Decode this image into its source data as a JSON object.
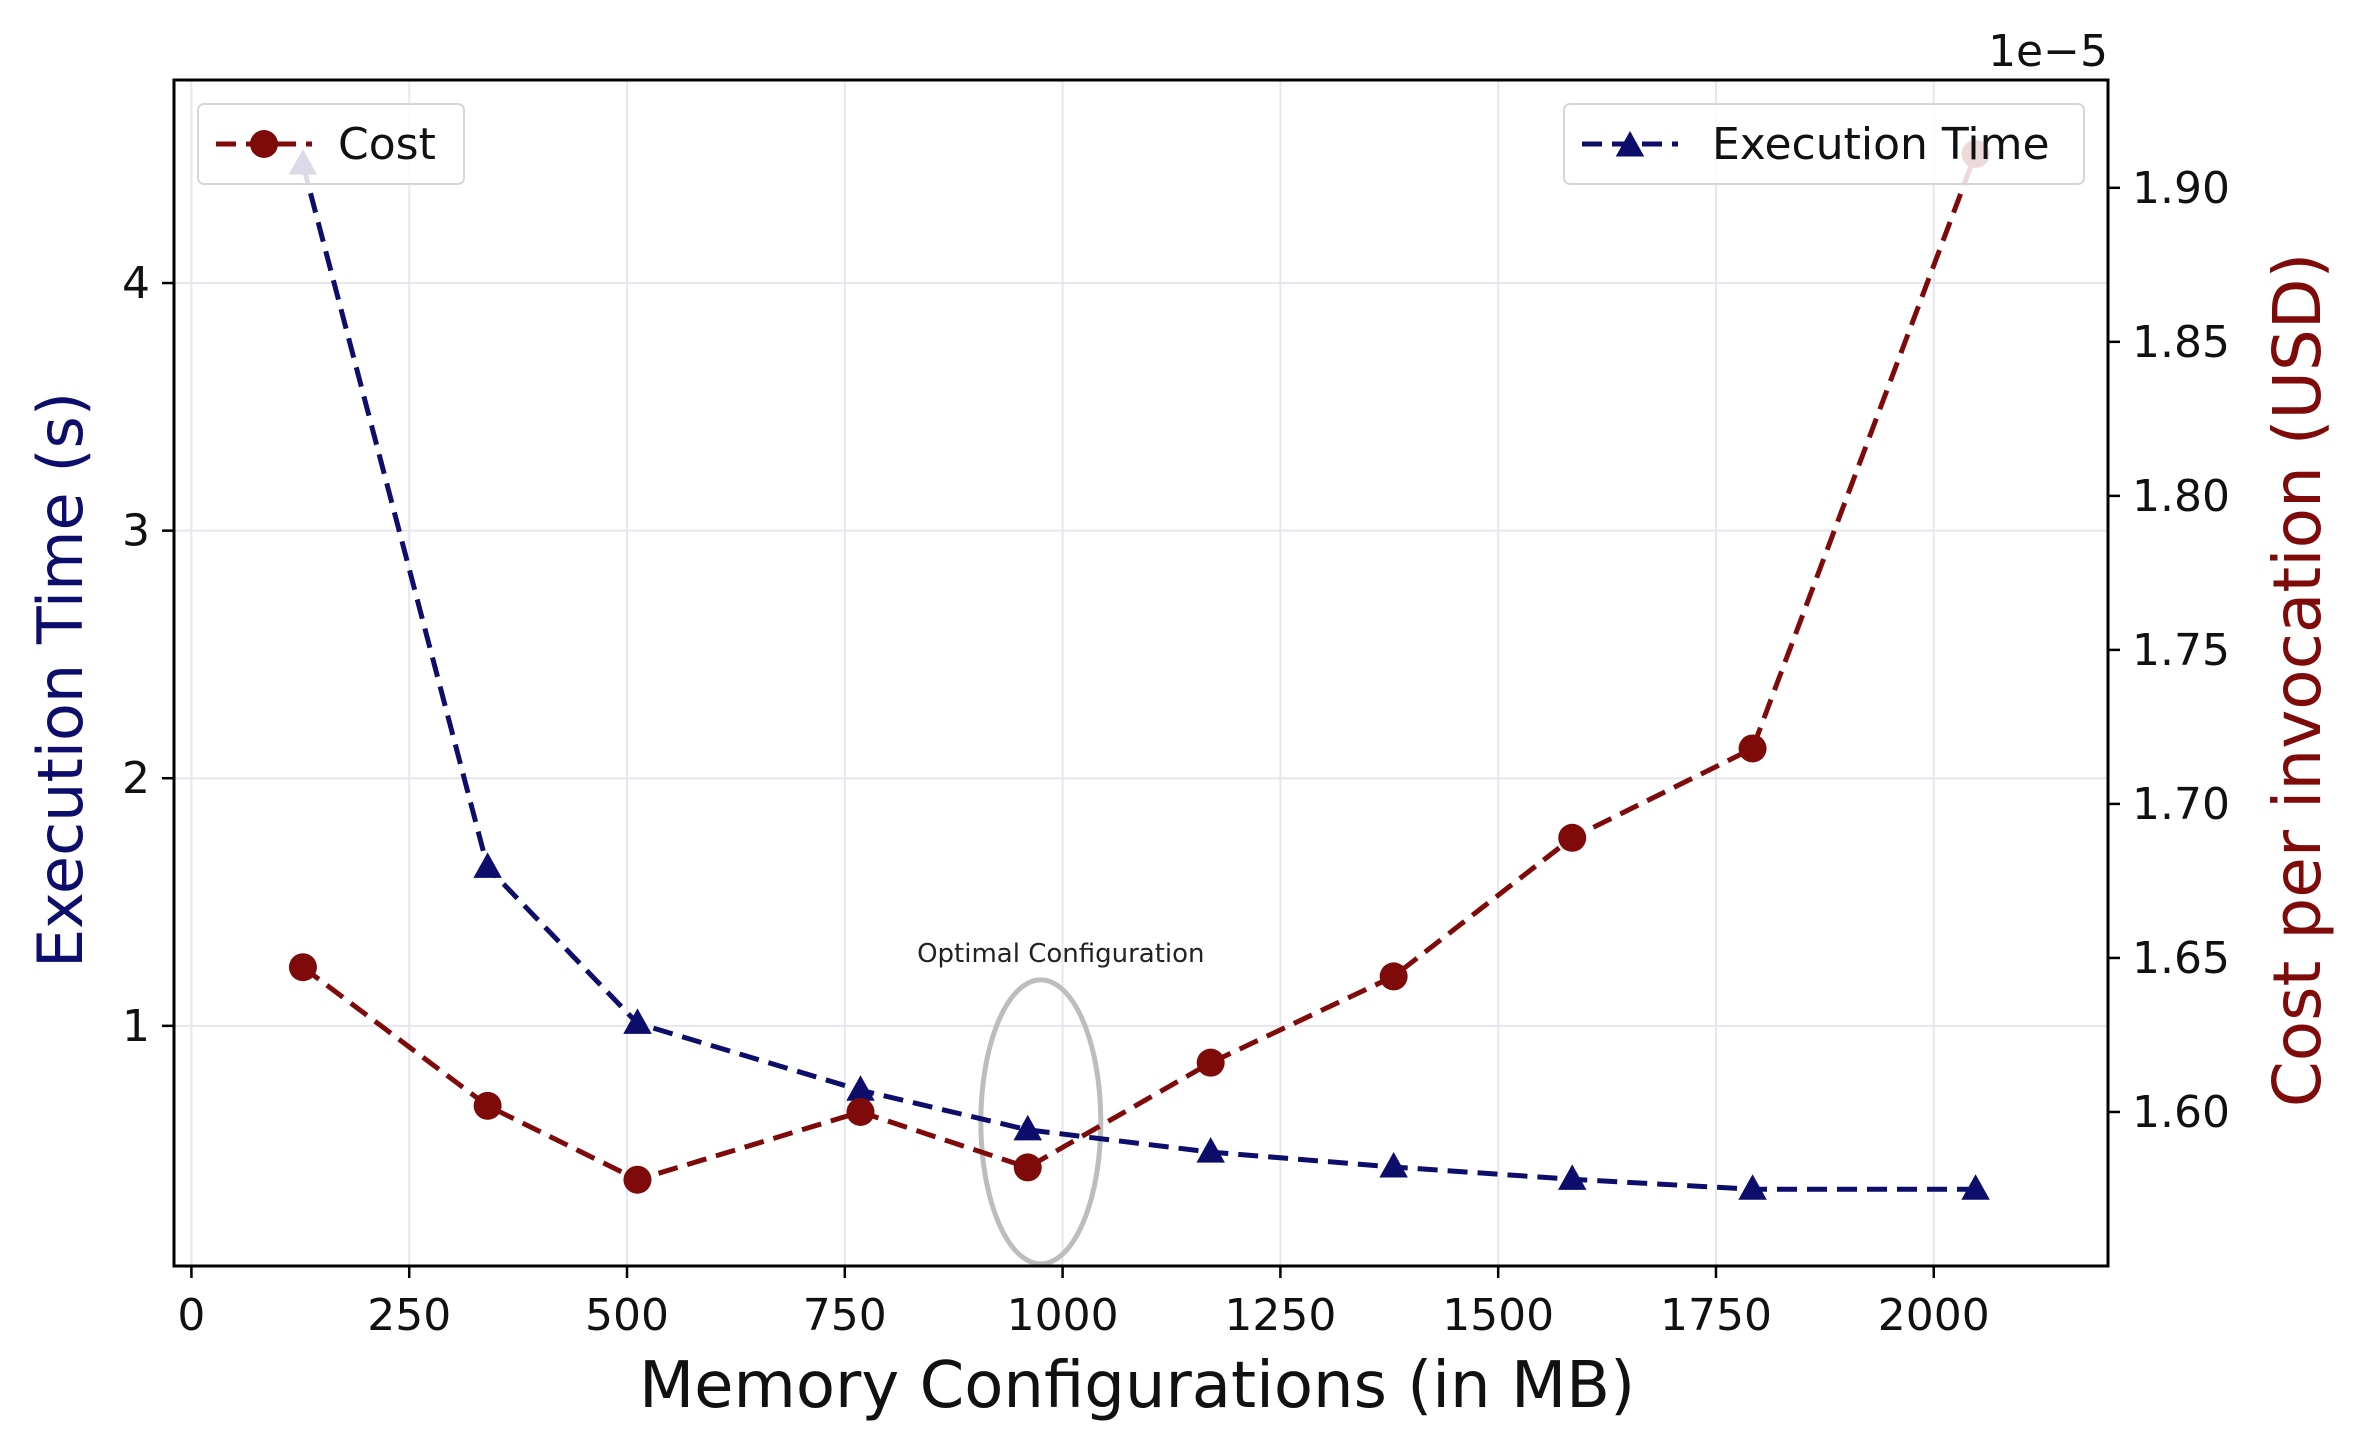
{
  "chart_data": {
    "type": "line",
    "title": "",
    "xlabel": "Memory Configurations (in MB)",
    "ylabel_left": "Execution Time (s)",
    "ylabel_right": "Cost per invocation (USD)",
    "right_axis_offset_text": "1e−5",
    "x": [
      128,
      340,
      512,
      768,
      960,
      1170,
      1380,
      1585,
      1792,
      2048
    ],
    "series": [
      {
        "name": "Execution Time",
        "axis": "left",
        "marker": "triangle",
        "line_style": "dashed",
        "color": "#0d0d6b",
        "values": [
          4.48,
          1.64,
          1.01,
          0.74,
          0.58,
          0.49,
          0.43,
          0.38,
          0.34,
          0.34
        ]
      },
      {
        "name": "Cost",
        "axis": "right",
        "marker": "circle",
        "line_style": "dashed",
        "color": "#7f0a0a",
        "values": [
          1.647,
          1.602,
          1.578,
          1.6,
          1.582,
          1.616,
          1.644,
          1.689,
          1.718,
          1.911
        ]
      }
    ],
    "x_ticks": [
      0,
      250,
      500,
      750,
      1000,
      1250,
      1500,
      1750,
      2000
    ],
    "x_tick_labels": [
      "0",
      "250",
      "500",
      "750",
      "1000",
      "1250",
      "1500",
      "1750",
      "2000"
    ],
    "xlim": [
      -20,
      2200
    ],
    "y_left_ticks": [
      1,
      2,
      3,
      4
    ],
    "y_left_tick_labels": [
      "1",
      "2",
      "3",
      "4"
    ],
    "y_left_lim": [
      0.03,
      4.82
    ],
    "y_right_ticks": [
      1.6,
      1.65,
      1.7,
      1.75,
      1.8,
      1.85,
      1.9
    ],
    "y_right_tick_labels": [
      "1.60",
      "1.65",
      "1.70",
      "1.75",
      "1.80",
      "1.85",
      "1.90"
    ],
    "y_right_lim": [
      1.55,
      1.935
    ],
    "grid": true,
    "legend_left": {
      "placement": "top-left",
      "label": "Cost"
    },
    "legend_right": {
      "placement": "top-right",
      "label": "Execution Time"
    },
    "annotation": {
      "text": "Optimal Configuration",
      "x": 975,
      "y_left": 0.58
    }
  }
}
